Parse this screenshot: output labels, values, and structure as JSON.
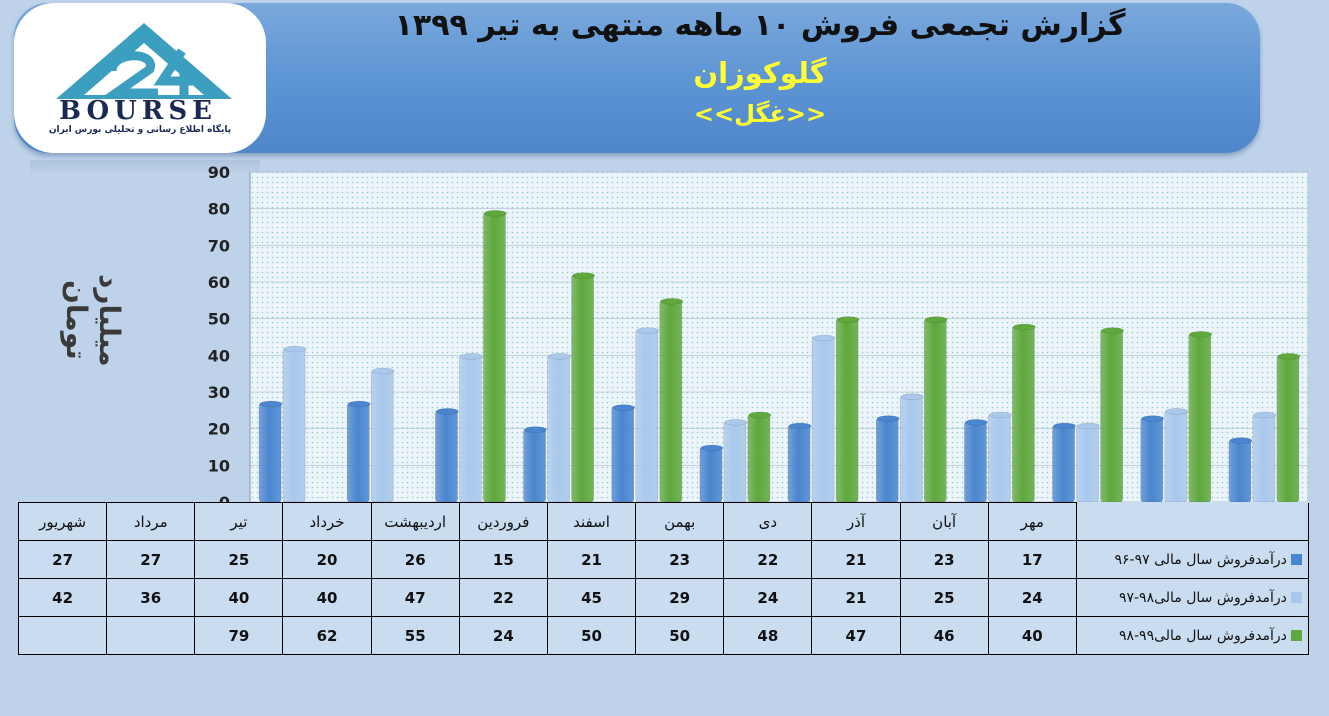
{
  "header": {
    "title": "گزارش تجمعی  فروش ۱۰ ماهه منتهی به تیر ۱۳۹۹",
    "company": "گلوکوزان",
    "ticker": "<<غگل>>"
  },
  "logo": {
    "name": "BOURSE",
    "tagline": "پایگاه اطلاع رسانی و تحلیلی بورس ایران"
  },
  "chart_data": {
    "type": "bar",
    "ylabel": "میلیارد تومان",
    "ylim": [
      0,
      90
    ],
    "yticks": [
      0,
      10,
      20,
      30,
      40,
      50,
      60,
      70,
      80,
      90
    ],
    "categories": [
      "مهر",
      "آبان",
      "آذر",
      "دی",
      "بهمن",
      "اسفند",
      "فروردین",
      "اردیبهشت",
      "خرداد",
      "تیر",
      "مرداد",
      "شهریور"
    ],
    "series": [
      {
        "name": "درآمدفروش سال مالی ۹۷-۹۶",
        "color": "#4a86cf",
        "values": [
          17,
          23,
          21,
          22,
          23,
          21,
          15,
          26,
          20,
          25,
          27,
          27
        ]
      },
      {
        "name": "درآمدفروش سال مالی۹۸-۹۷",
        "color": "#a9c8ec",
        "values": [
          24,
          25,
          21,
          24,
          29,
          45,
          22,
          47,
          40,
          40,
          36,
          42
        ]
      },
      {
        "name": "درآمدفروش سال مالی۹۹-۹۸",
        "color": "#5fa83c",
        "values": [
          40,
          46,
          47,
          48,
          50,
          50,
          24,
          55,
          62,
          79,
          null,
          null
        ]
      }
    ],
    "grid": true,
    "legend": "data-table"
  }
}
